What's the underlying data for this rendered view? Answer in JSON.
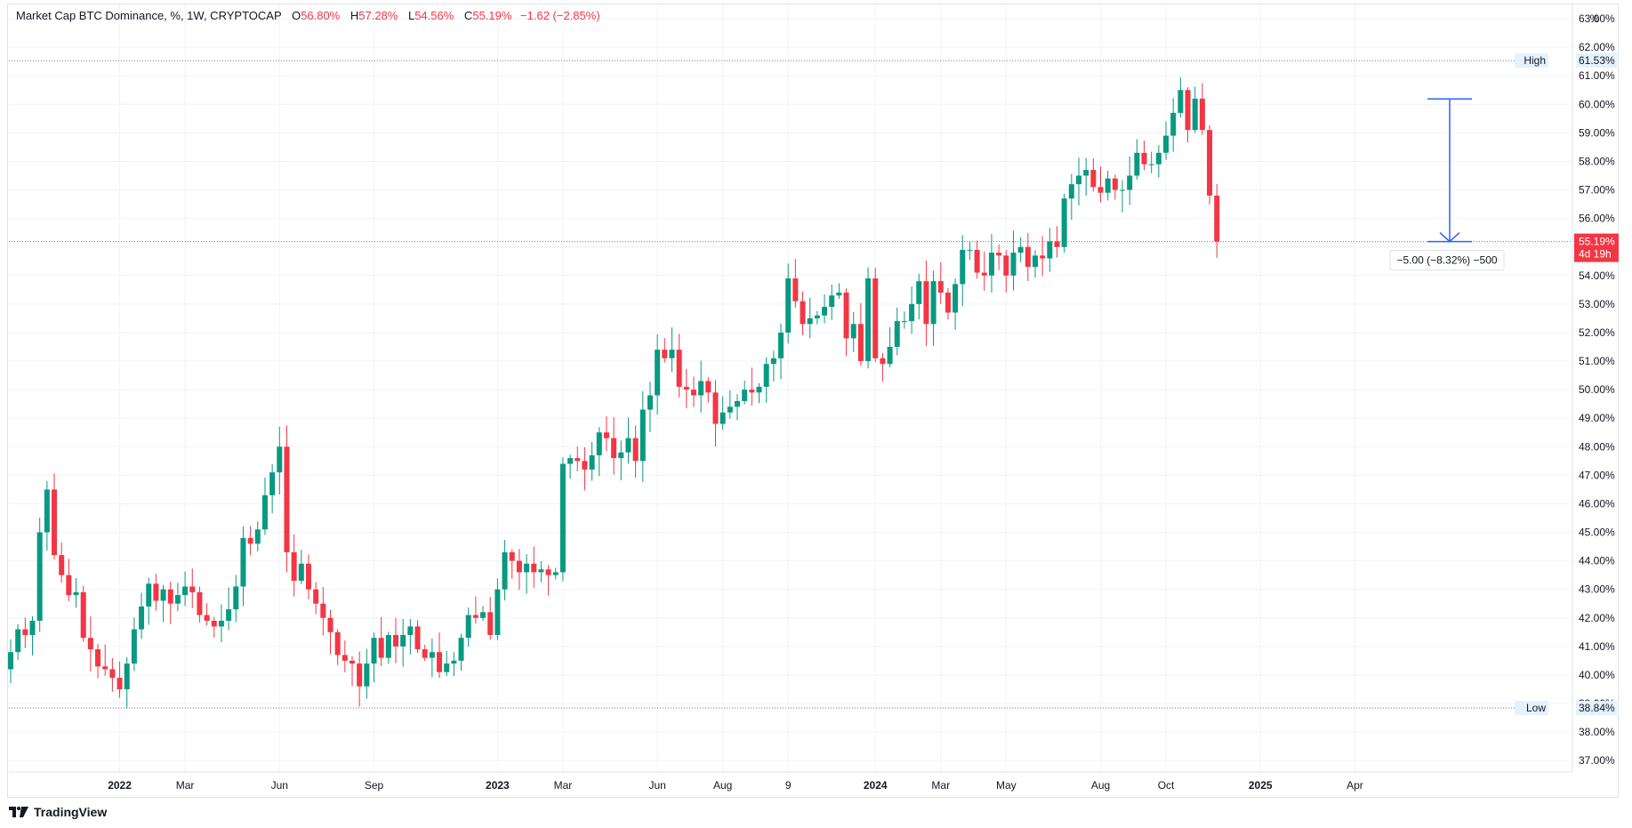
{
  "header": {
    "symbol": "Market Cap BTC Dominance, %, 1W, CRYPTOCAP",
    "o_label": "O",
    "o_value": "56.80%",
    "h_label": "H",
    "h_value": "57.28%",
    "l_label": "L",
    "l_value": "54.56%",
    "c_label": "C",
    "c_value": "55.19%",
    "change": "−1.62 (−2.85%)"
  },
  "axis_unit": "%",
  "footer": {
    "brand": "TradingView",
    "logo_icon": "tradingview-logo-icon"
  },
  "colors": {
    "up": "#089981",
    "down": "#f23645",
    "measure": "#2962ff",
    "grid": "#f0f3fa"
  },
  "chart_data": {
    "type": "candlestick",
    "title": "Market Cap BTC Dominance, %, 1W, CRYPTOCAP",
    "ylabel": "%",
    "ylim": [
      36.6,
      63.5
    ],
    "y_ticks": [
      "37.00%",
      "38.00%",
      "39.00%",
      "40.00%",
      "41.00%",
      "42.00%",
      "43.00%",
      "44.00%",
      "45.00%",
      "46.00%",
      "47.00%",
      "48.00%",
      "49.00%",
      "50.00%",
      "51.00%",
      "52.00%",
      "53.00%",
      "54.00%",
      "55.00%",
      "56.00%",
      "57.00%",
      "58.00%",
      "59.00%",
      "60.00%",
      "61.00%",
      "62.00%",
      "63.00%"
    ],
    "x_ticks": [
      {
        "label": "2022",
        "bold": true,
        "idx": 15
      },
      {
        "label": "Mar",
        "bold": false,
        "idx": 24
      },
      {
        "label": "Jun",
        "bold": false,
        "idx": 37
      },
      {
        "label": "Sep",
        "bold": false,
        "idx": 50
      },
      {
        "label": "2023",
        "bold": true,
        "idx": 67
      },
      {
        "label": "Mar",
        "bold": false,
        "idx": 76
      },
      {
        "label": "Jun",
        "bold": false,
        "idx": 89
      },
      {
        "label": "Aug",
        "bold": false,
        "idx": 98
      },
      {
        "label": "9",
        "bold": false,
        "idx": 107
      },
      {
        "label": "2024",
        "bold": true,
        "idx": 119
      },
      {
        "label": "Mar",
        "bold": false,
        "idx": 128
      },
      {
        "label": "May",
        "bold": false,
        "idx": 137
      },
      {
        "label": "Aug",
        "bold": false,
        "idx": 150
      },
      {
        "label": "Oct",
        "bold": false,
        "idx": 159
      },
      {
        "label": "2025",
        "bold": true,
        "idx": 172
      },
      {
        "label": "Apr",
        "bold": false,
        "idx": 185
      }
    ],
    "closes": [
      40.8,
      41.6,
      41.4,
      41.9,
      45.0,
      46.5,
      44.2,
      43.5,
      42.8,
      42.9,
      41.3,
      40.9,
      40.3,
      40.2,
      39.9,
      39.5,
      40.4,
      41.6,
      42.4,
      43.2,
      42.6,
      43.0,
      42.5,
      42.8,
      43.1,
      42.9,
      42.1,
      41.9,
      41.7,
      41.9,
      42.3,
      43.1,
      44.8,
      44.6,
      45.1,
      46.3,
      47.1,
      48.0,
      44.3,
      43.3,
      43.9,
      43.0,
      42.5,
      42.0,
      41.5,
      40.7,
      40.5,
      40.4,
      39.6,
      40.4,
      41.3,
      40.6,
      41.4,
      41.0,
      41.4,
      41.7,
      40.9,
      40.6,
      40.8,
      40.1,
      40.4,
      40.5,
      41.3,
      42.1,
      42.0,
      42.2,
      41.4,
      43.0,
      44.3,
      44.0,
      43.6,
      43.9,
      43.6,
      43.7,
      43.5,
      43.6,
      47.4,
      47.6,
      47.5,
      47.2,
      47.7,
      48.5,
      48.3,
      47.6,
      47.8,
      48.3,
      47.5,
      49.3,
      49.8,
      51.4,
      51.1,
      51.4,
      50.1,
      50.0,
      49.8,
      50.3,
      49.9,
      48.8,
      49.2,
      49.4,
      49.6,
      50.0,
      49.9,
      50.1,
      50.9,
      51.1,
      52.0,
      53.9,
      53.1,
      52.3,
      52.5,
      52.6,
      52.9,
      53.3,
      53.4,
      51.8,
      52.3,
      51.0,
      53.9,
      51.1,
      50.9,
      51.5,
      52.4,
      52.4,
      53.0,
      53.8,
      52.3,
      53.8,
      53.4,
      52.7,
      53.7,
      54.9,
      54.9,
      54.1,
      54.0,
      54.8,
      54.7,
      54.0,
      54.8,
      55.0,
      54.3,
      54.7,
      54.6,
      55.2,
      55.0,
      56.7,
      57.2,
      57.5,
      57.7,
      57.1,
      56.9,
      57.4,
      57.0,
      57.0,
      57.5,
      58.3,
      57.9,
      57.9,
      58.3,
      58.9,
      59.7,
      60.5,
      59.1,
      60.2,
      59.1,
      56.8,
      55.19
    ],
    "opens_first": 40.2,
    "series_extremes": {
      "high": 61.53,
      "low": 38.84
    },
    "last_price_label": "55.19%",
    "countdown_label": "4d 19h",
    "high_label": "High",
    "high_value": "61.53%",
    "low_label": "Low",
    "low_value": "38.84%",
    "measurement": {
      "from": 60.19,
      "to": 55.19,
      "label": "−5.00 (−8.32%) −500"
    }
  }
}
